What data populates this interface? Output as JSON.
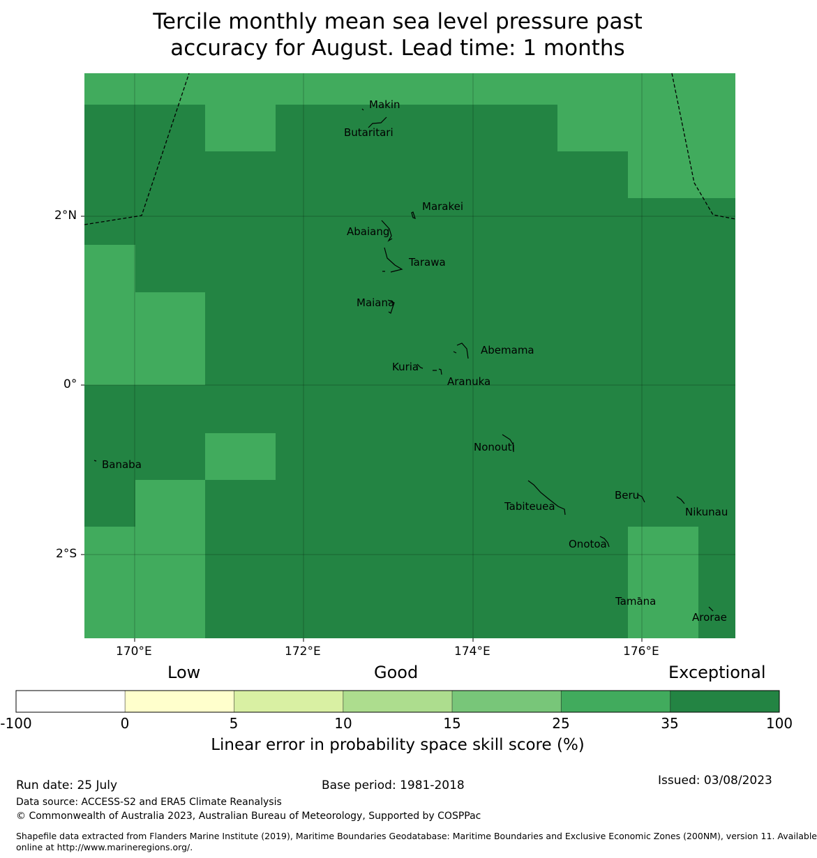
{
  "title_line1": "Tercile monthly mean sea level pressure past",
  "title_line2": "accuracy for August. Lead time: 1 months",
  "map": {
    "x_ticks": [
      "170°E",
      "172°E",
      "174°E",
      "176°E"
    ],
    "y_ticks": [
      "2°N",
      "0°",
      "2°S"
    ],
    "islands": [
      "Makin",
      "Butaritari",
      "Marakei",
      "Abaiang",
      "Tarawa",
      "Maiana",
      "Abemama",
      "Kuria",
      "Aranuka",
      "Nonouti",
      "Banaba",
      "Tabiteuea",
      "Beru",
      "Nikunau",
      "Onotoa",
      "Tamana",
      "Arorae"
    ],
    "colors": {
      "exceptional": "#238443",
      "high": "#41ab5d"
    }
  },
  "legend": {
    "categories": [
      "Low",
      "Good",
      "Exceptional"
    ],
    "bins": [
      {
        "from": "-100",
        "to": "0",
        "color": "#ffffff"
      },
      {
        "from": "0",
        "to": "5",
        "color": "#ffffcc"
      },
      {
        "from": "5",
        "to": "10",
        "color": "#d9f0a3"
      },
      {
        "from": "10",
        "to": "15",
        "color": "#addd8e"
      },
      {
        "from": "15",
        "to": "25",
        "color": "#78c679"
      },
      {
        "from": "25",
        "to": "35",
        "color": "#41ab5d"
      },
      {
        "from": "35",
        "to": "100",
        "color": "#238443"
      }
    ],
    "tick_labels": [
      "-100",
      "0",
      "5",
      "10",
      "15",
      "25",
      "35",
      "100"
    ],
    "xlabel": "Linear error in probability space skill score (%)"
  },
  "footer": {
    "run_date": "Run date: 25 July",
    "base_period": "Base period: 1981-2018",
    "issued": "Issued: 03/08/2023",
    "data_source": "Data source: ACCESS-S2 and ERA5 Climate Reanalysis",
    "copyright": "© Commonwealth of Australia 2023, Australian Bureau of Meteorology, Supported by COSPPac",
    "shapefile_line1": "Shapefile data extracted from Flanders Marine Institute (2019), Maritime Boundaries Geodatabase: Maritime Boundaries and Exclusive Economic Zones (200NM), version 11. Available",
    "shapefile_line2": "online at http://www.marineregions.org/."
  }
}
